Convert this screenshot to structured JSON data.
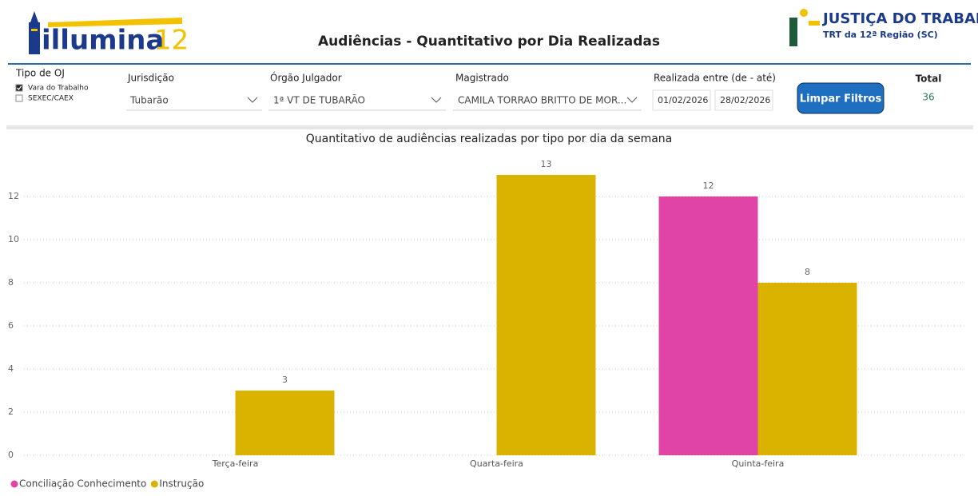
{
  "header": {
    "logo": "illumina",
    "logo_suffix": "12",
    "title": "Audiências - Quantitativo por Dia Realizadas",
    "brand": "JUSTIÇA DO TRABALHO",
    "brand_sub": "TRT da 12ª Região (SC)"
  },
  "filters": {
    "tipo_oj": {
      "label": "Tipo de OJ",
      "options": [
        {
          "label": "Vara do Trabalho",
          "checked": true
        },
        {
          "label": "SEXEC/CAEX",
          "checked": false
        }
      ]
    },
    "jurisdicao": {
      "label": "Jurisdição",
      "value": "Tubarão"
    },
    "orgao": {
      "label": "Órgão Julgador",
      "value": "1ª VT DE TUBARÃO"
    },
    "magistrado": {
      "label": "Magistrado",
      "value": "CAMILA TORRAO BRITTO DE MOR..."
    },
    "periodo": {
      "label": "Realizada entre (de - até)",
      "from": "01/02/2026",
      "to": "28/02/2026"
    },
    "button": "Limpar Filtros",
    "total": {
      "label": "Total",
      "value": 36
    }
  },
  "chart_data": {
    "type": "bar",
    "title": "Quantitativo de audiências realizadas por tipo por dia da semana",
    "categories": [
      "Terça-feira",
      "Quarta-feira",
      "Quinta-feira"
    ],
    "series": [
      {
        "name": "Conciliação Conhecimento",
        "color": "#e044a7",
        "values": [
          null,
          null,
          12
        ]
      },
      {
        "name": "Instrução",
        "color": "#d9b300",
        "values": [
          3,
          13,
          8
        ]
      }
    ],
    "ylim": [
      0,
      14
    ],
    "yticks": [
      0,
      2,
      4,
      6,
      8,
      10,
      12
    ],
    "grid": true,
    "legend": "bottom-left"
  }
}
